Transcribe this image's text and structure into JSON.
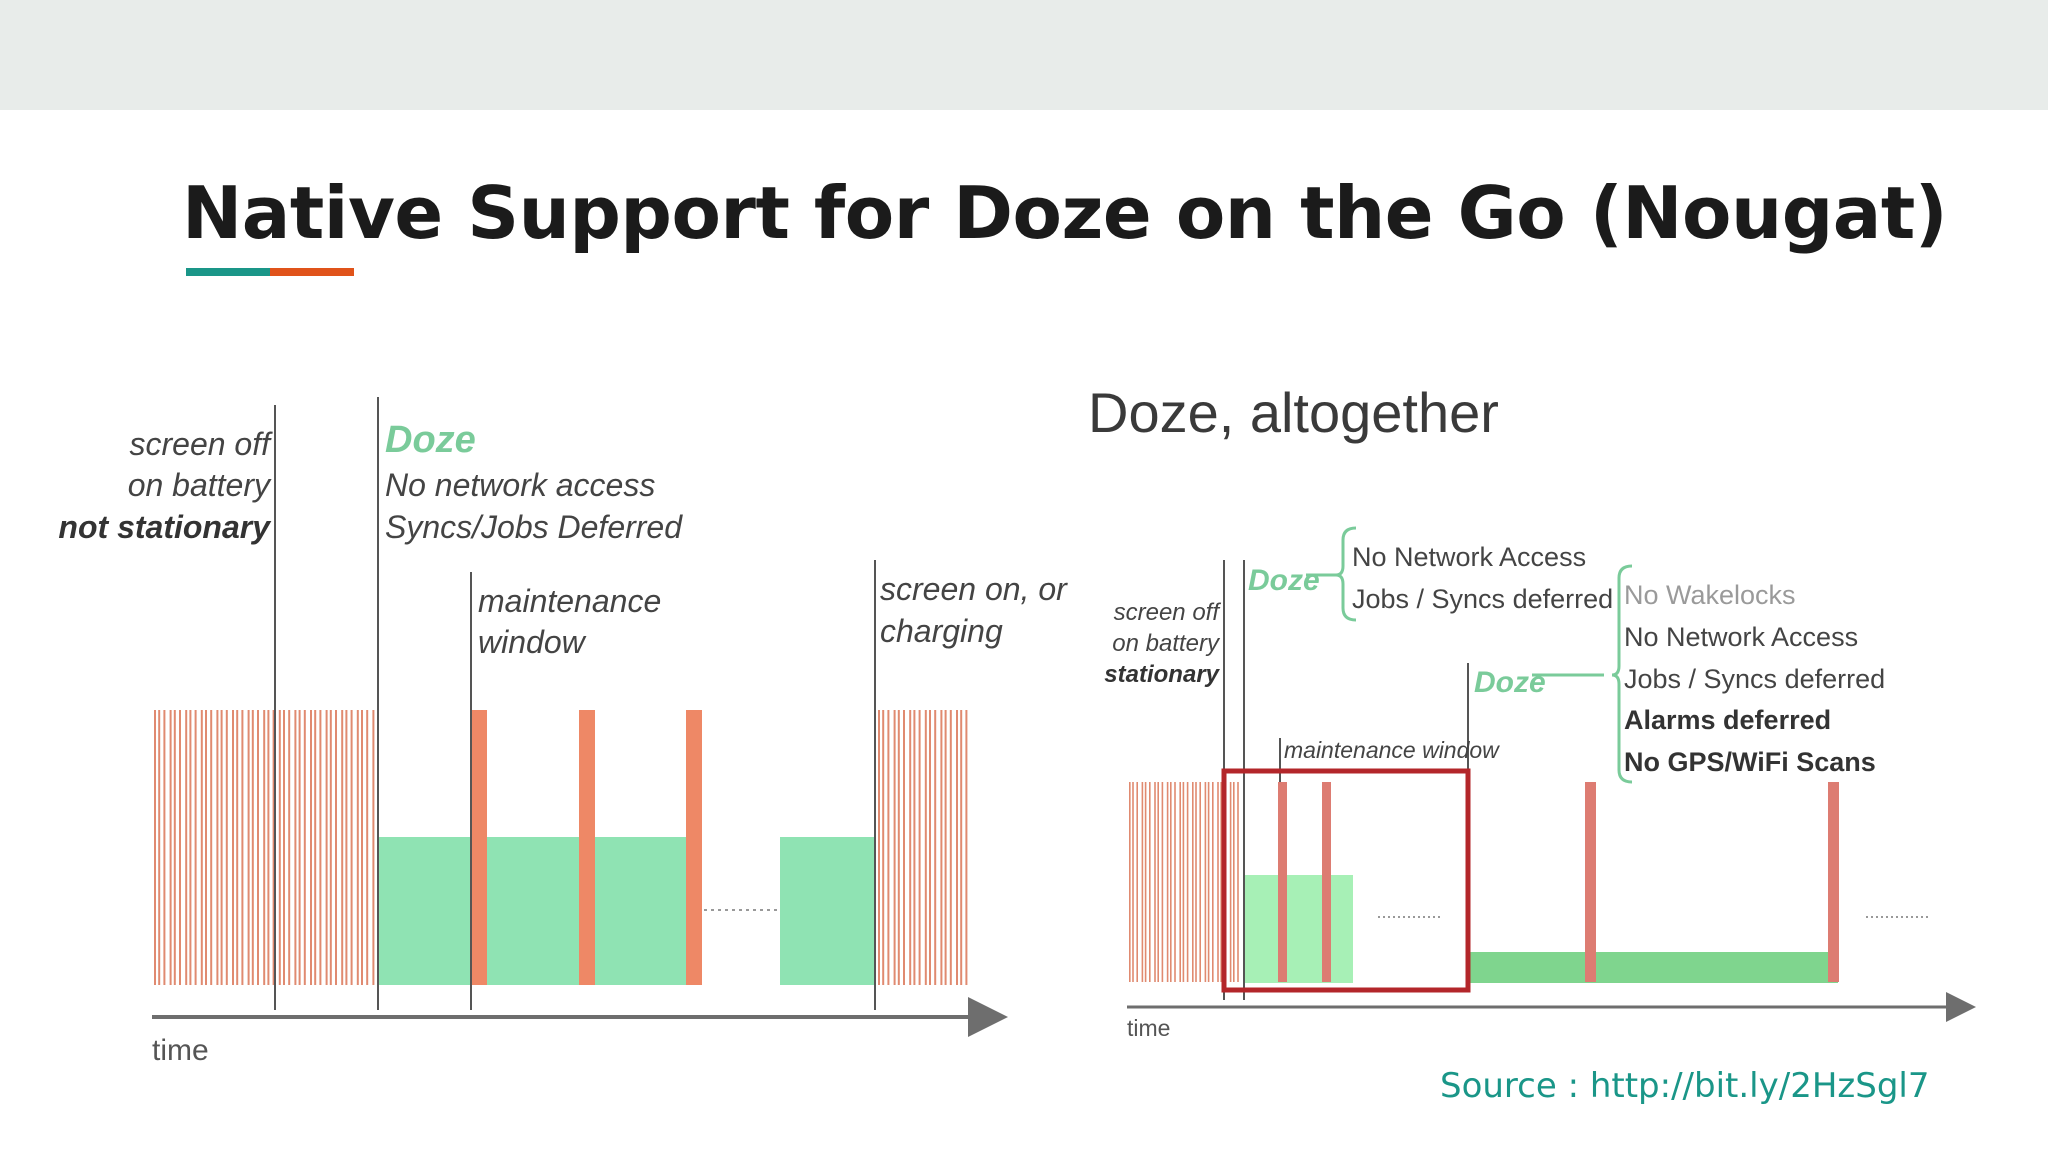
{
  "slide": {
    "title": "Native Support for Doze on the Go (Nougat)",
    "source": "Source : http://bit.ly/2HzSgl7",
    "accent_colors": [
      "#1a9688",
      "#e0531a"
    ]
  },
  "left_diagram": {
    "label_screen_off": "screen off",
    "label_on_battery": "on battery",
    "label_not_stationary": "not stationary",
    "label_doze": "Doze",
    "label_no_network": "No network access",
    "label_syncs": "Syncs/Jobs Deferred",
    "label_maintenance": "maintenance",
    "label_window": "window",
    "label_screen_on": "screen on, or",
    "label_charging": "charging",
    "axis_label": "time"
  },
  "right_diagram": {
    "heading": "Doze, altogether",
    "label_doze_1": "Doze",
    "doze1_items": [
      "No Network Access",
      "Jobs / Syncs deferred"
    ],
    "label_screen_off": "screen off",
    "label_on_battery": "on battery",
    "label_stationary": "stationary",
    "label_maintenance_window": "maintenance window",
    "label_doze_2": "Doze",
    "doze2_items": [
      "No Wakelocks",
      "No Network Access",
      "Jobs / Syncs deferred",
      "Alarms deferred",
      "No GPS/WiFi Scans"
    ],
    "axis_label": "time"
  },
  "colors": {
    "activity_stripe": "#e08a70",
    "maintenance_bar": "#ee8866",
    "doze_fill": "#8fe3b3",
    "doze_light_fill": "#a7f0b6",
    "doze_deep_fill": "#7fd58e",
    "right_bar": "#dd7c72",
    "doze_label": "#7acb9a",
    "highlight_box": "#b3262a"
  }
}
